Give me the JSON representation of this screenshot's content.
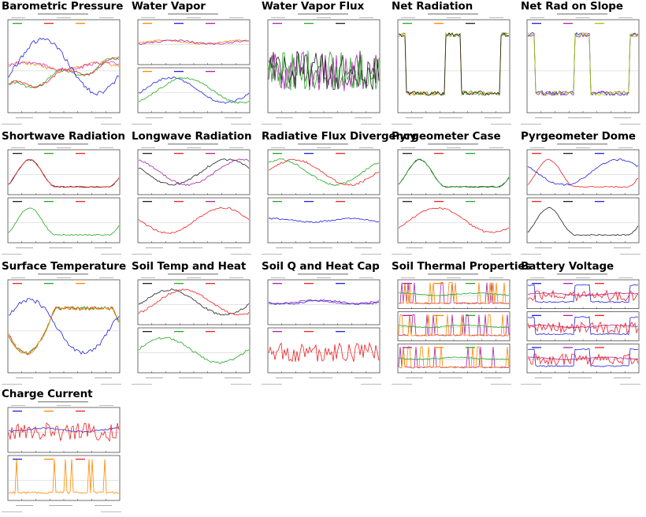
{
  "panels": [
    {
      "title": "Barometric Pressure"
    },
    {
      "title": "Water Vapor"
    },
    {
      "title": "Water Vapor Flux"
    },
    {
      "title": "Net Radiation"
    },
    {
      "title": "Net Rad on Slope"
    },
    {
      "title": "Shortwave Radiation"
    },
    {
      "title": "Longwave Radiation"
    },
    {
      "title": "Radiative Flux Divergency"
    },
    {
      "title": "Pyrgeometer Case"
    },
    {
      "title": "Pyrgeometer Dome"
    },
    {
      "title": "Surface Temperature"
    },
    {
      "title": "Soil Temp and Heat"
    },
    {
      "title": "Soil Q and Heat Cap"
    },
    {
      "title": "Soil Thermal Properties"
    },
    {
      "title": "Battery Voltage"
    },
    {
      "title": "Charge Current"
    }
  ],
  "colors": {
    "green": "#22aa22",
    "orange": "#ff8800",
    "red": "#ee2222",
    "blue": "#2222dd",
    "purple": "#aa22aa",
    "magenta": "#cc44cc",
    "yellowgreen": "#99cc00",
    "black": "#222222"
  }
}
